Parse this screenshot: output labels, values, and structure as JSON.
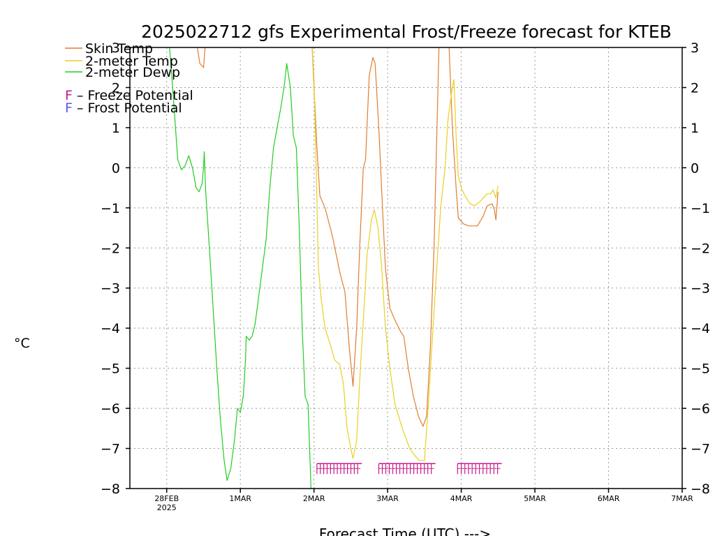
{
  "chart_data": {
    "type": "line",
    "title": "2025022712 gfs Experimental Frost/Freeze forecast for KTEB",
    "xlabel": "Forecast Time (UTC) --->",
    "ylabel": "°C",
    "xlim": [
      -0.5,
      7.0
    ],
    "ylim": [
      -8,
      3
    ],
    "y_ticks": [
      3,
      2,
      1,
      0,
      -1,
      -2,
      -3,
      -4,
      -5,
      -6,
      -7,
      -8
    ],
    "x_ticks": [
      {
        "x": 0,
        "label": "28FEB",
        "sublabel": "2025"
      },
      {
        "x": 1,
        "label": "1MAR",
        "sublabel": ""
      },
      {
        "x": 2,
        "label": "2MAR",
        "sublabel": ""
      },
      {
        "x": 3,
        "label": "3MAR",
        "sublabel": ""
      },
      {
        "x": 4,
        "label": "4MAR",
        "sublabel": ""
      },
      {
        "x": 5,
        "label": "5MAR",
        "sublabel": ""
      },
      {
        "x": 6,
        "label": "6MAR",
        "sublabel": ""
      },
      {
        "x": 7,
        "label": "7MAR",
        "sublabel": ""
      }
    ],
    "x_units": "days from 28FEB 2025 00Z",
    "grid": true,
    "legend": [
      {
        "label": "Skin Temp",
        "color": "#e07d30"
      },
      {
        "label": "2-meter Temp",
        "color": "#e8d020"
      },
      {
        "label": "2-meter Dewp",
        "color": "#22cc22"
      },
      {
        "label": "F – Freeze Potential",
        "marker": "F",
        "color": "#c8198c"
      },
      {
        "label": "F – Frost Potential",
        "marker": "F",
        "color": "#5a5ae6"
      }
    ],
    "series": [
      {
        "name": "Skin Temp",
        "color": "#e07d30",
        "segments": [
          [
            [
              0.4,
              3.2
            ],
            [
              0.45,
              2.6
            ],
            [
              0.5,
              2.5
            ],
            [
              0.53,
              3.2
            ]
          ],
          [
            [
              1.97,
              3.2
            ],
            [
              2.0,
              2.0
            ],
            [
              2.04,
              0.5
            ],
            [
              2.08,
              -0.7
            ],
            [
              2.15,
              -1.0
            ],
            [
              2.25,
              -1.7
            ],
            [
              2.35,
              -2.6
            ],
            [
              2.42,
              -3.1
            ],
            [
              2.48,
              -4.5
            ],
            [
              2.53,
              -5.45
            ],
            [
              2.58,
              -4.0
            ],
            [
              2.62,
              -2.0
            ],
            [
              2.67,
              0.0
            ],
            [
              2.7,
              0.2
            ],
            [
              2.75,
              2.3
            ],
            [
              2.8,
              2.75
            ],
            [
              2.83,
              2.6
            ],
            [
              2.88,
              1.0
            ],
            [
              2.93,
              -1.0
            ],
            [
              2.97,
              -2.5
            ],
            [
              3.03,
              -3.5
            ],
            [
              3.1,
              -3.8
            ],
            [
              3.18,
              -4.1
            ],
            [
              3.22,
              -4.2
            ],
            [
              3.28,
              -5.0
            ],
            [
              3.35,
              -5.7
            ],
            [
              3.42,
              -6.2
            ],
            [
              3.48,
              -6.45
            ],
            [
              3.53,
              -6.2
            ],
            [
              3.58,
              -4.5
            ],
            [
              3.63,
              -2.0
            ],
            [
              3.67,
              1.0
            ],
            [
              3.7,
              3.2
            ]
          ],
          [
            [
              3.83,
              3.2
            ],
            [
              3.88,
              1.0
            ],
            [
              3.93,
              -0.5
            ],
            [
              3.96,
              -1.25
            ],
            [
              4.03,
              -1.4
            ],
            [
              4.1,
              -1.45
            ],
            [
              4.22,
              -1.45
            ],
            [
              4.3,
              -1.2
            ],
            [
              4.35,
              -0.95
            ],
            [
              4.42,
              -0.9
            ],
            [
              4.45,
              -1.05
            ],
            [
              4.47,
              -1.3
            ],
            [
              4.5,
              -0.6
            ]
          ]
        ]
      },
      {
        "name": "2-meter Temp",
        "color": "#e8d020",
        "segments": [
          [
            [
              1.97,
              3.2
            ],
            [
              2.0,
              2.2
            ],
            [
              2.03,
              0.0
            ],
            [
              2.06,
              -2.5
            ],
            [
              2.1,
              -3.3
            ],
            [
              2.15,
              -4.0
            ],
            [
              2.22,
              -4.4
            ],
            [
              2.28,
              -4.8
            ],
            [
              2.35,
              -4.9
            ],
            [
              2.4,
              -5.4
            ],
            [
              2.45,
              -6.5
            ],
            [
              2.5,
              -7.0
            ],
            [
              2.53,
              -7.25
            ],
            [
              2.58,
              -6.8
            ],
            [
              2.63,
              -5.0
            ],
            [
              2.68,
              -3.5
            ],
            [
              2.72,
              -2.2
            ],
            [
              2.78,
              -1.3
            ],
            [
              2.82,
              -1.05
            ],
            [
              2.87,
              -1.5
            ],
            [
              2.92,
              -2.5
            ],
            [
              2.97,
              -4.0
            ],
            [
              3.03,
              -5.0
            ],
            [
              3.1,
              -5.9
            ],
            [
              3.2,
              -6.5
            ],
            [
              3.3,
              -7.0
            ],
            [
              3.38,
              -7.2
            ],
            [
              3.43,
              -7.3
            ],
            [
              3.5,
              -7.3
            ],
            [
              3.55,
              -6.0
            ],
            [
              3.6,
              -4.5
            ],
            [
              3.65,
              -3.0
            ],
            [
              3.72,
              -1.0
            ],
            [
              3.78,
              0.0
            ],
            [
              3.82,
              1.2
            ],
            [
              3.87,
              1.9
            ],
            [
              3.9,
              2.2
            ],
            [
              3.93,
              0.8
            ],
            [
              3.96,
              -0.2
            ],
            [
              4.0,
              -0.5
            ],
            [
              4.05,
              -0.7
            ],
            [
              4.12,
              -0.9
            ],
            [
              4.18,
              -0.95
            ],
            [
              4.25,
              -0.85
            ],
            [
              4.35,
              -0.65
            ],
            [
              4.4,
              -0.65
            ],
            [
              4.43,
              -0.55
            ],
            [
              4.47,
              -0.75
            ],
            [
              4.5,
              -0.45
            ]
          ]
        ]
      },
      {
        "name": "2-meter Dewp",
        "color": "#22cc22",
        "segments": [
          [
            [
              0.03,
              3.2
            ],
            [
              0.06,
              2.5
            ],
            [
              0.1,
              1.5
            ],
            [
              0.15,
              0.2
            ],
            [
              0.2,
              -0.05
            ],
            [
              0.25,
              0.05
            ],
            [
              0.3,
              0.3
            ],
            [
              0.35,
              0.0
            ],
            [
              0.4,
              -0.5
            ],
            [
              0.44,
              -0.6
            ],
            [
              0.48,
              -0.4
            ],
            [
              0.5,
              0.0
            ],
            [
              0.51,
              0.4
            ],
            [
              0.53,
              -0.6
            ],
            [
              0.58,
              -2.0
            ],
            [
              0.63,
              -3.5
            ],
            [
              0.68,
              -5.0
            ],
            [
              0.73,
              -6.3
            ],
            [
              0.78,
              -7.3
            ],
            [
              0.82,
              -7.8
            ],
            [
              0.87,
              -7.5
            ],
            [
              0.92,
              -6.8
            ],
            [
              0.96,
              -6.0
            ],
            [
              1.0,
              -6.1
            ],
            [
              1.04,
              -5.7
            ],
            [
              1.07,
              -4.8
            ],
            [
              1.08,
              -4.2
            ],
            [
              1.12,
              -4.3
            ],
            [
              1.16,
              -4.2
            ],
            [
              1.2,
              -3.9
            ],
            [
              1.25,
              -3.2
            ],
            [
              1.3,
              -2.5
            ],
            [
              1.35,
              -1.8
            ],
            [
              1.4,
              -0.5
            ],
            [
              1.45,
              0.5
            ],
            [
              1.5,
              1.0
            ],
            [
              1.55,
              1.5
            ],
            [
              1.6,
              2.1
            ],
            [
              1.63,
              2.6
            ],
            [
              1.68,
              2.0
            ],
            [
              1.72,
              0.8
            ],
            [
              1.76,
              0.5
            ],
            [
              1.8,
              -1.5
            ],
            [
              1.84,
              -4.0
            ],
            [
              1.88,
              -5.7
            ],
            [
              1.92,
              -5.9
            ],
            [
              1.96,
              -8.0
            ]
          ]
        ]
      }
    ],
    "potential_markers": [
      {
        "type": "Freeze Potential",
        "color": "#c8198c",
        "x_start": 2.04,
        "x_end": 2.65,
        "y": -7.5
      },
      {
        "type": "Freeze Potential",
        "color": "#c8198c",
        "x_start": 2.88,
        "x_end": 3.65,
        "y": -7.5
      },
      {
        "type": "Freeze Potential",
        "color": "#c8198c",
        "x_start": 3.95,
        "x_end": 4.55,
        "y": -7.5
      }
    ]
  }
}
